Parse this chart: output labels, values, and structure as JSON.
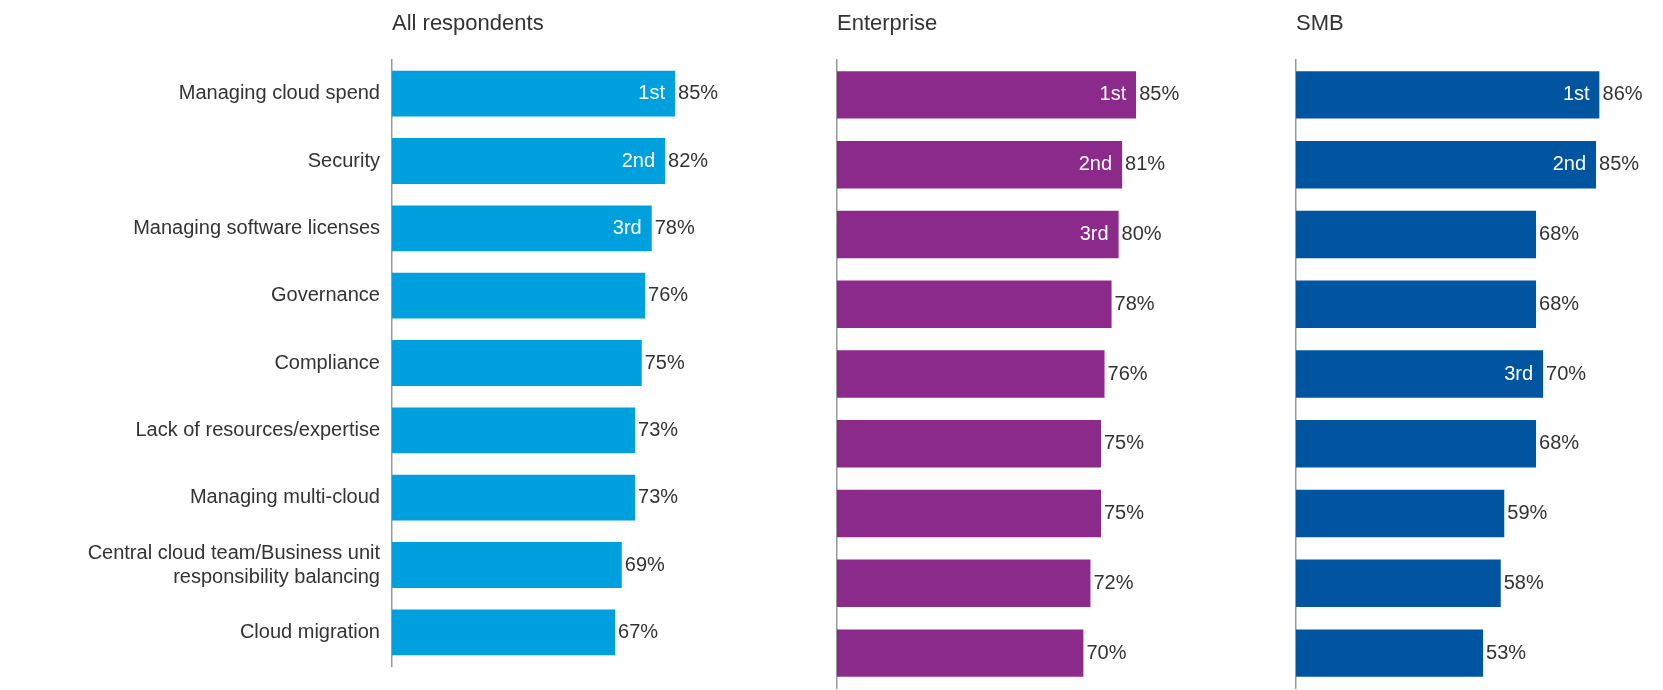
{
  "chart_data": [
    {
      "type": "bar",
      "orientation": "horizontal",
      "title": "All respondents",
      "tick_labels": "y",
      "categories": [
        "Managing cloud spend",
        "Security",
        "Managing software licenses",
        "Governance",
        "Compliance",
        "Lack of resources/expertise",
        "Managing multi-cloud",
        "Central cloud team/Business unit responsibility balancing",
        "Cloud migration"
      ],
      "series": [
        {
          "color": "#00a0df",
          "values": [
            85,
            82,
            78,
            76,
            75,
            73,
            73,
            69,
            67
          ],
          "value_labels": [
            "85%",
            "82%",
            "78%",
            "76%",
            "75%",
            "73%",
            "73%",
            "69%",
            "67%"
          ]
        }
      ],
      "annotations": [
        {
          "text": "1st",
          "x": 85,
          "y": "Managing cloud spend"
        },
        {
          "text": "2nd",
          "x": 82,
          "y": "Security"
        },
        {
          "text": "3rd",
          "x": 78,
          "y": "Managing software licenses"
        }
      ]
    },
    {
      "type": "bar",
      "orientation": "horizontal",
      "title": "Enterprise",
      "tick_labels": false,
      "categories": [
        "Managing cloud spend",
        "Security",
        "Managing software licenses",
        "Governance",
        "Compliance",
        "Lack of resources/expertise",
        "Managing multi-cloud",
        "Central cloud team/Business unit responsibility balancing",
        "Cloud migration"
      ],
      "series": [
        {
          "color": "#8c2a8c",
          "values": [
            85,
            81,
            80,
            78,
            76,
            75,
            75,
            72,
            70
          ],
          "value_labels": [
            "85%",
            "81%",
            "80%",
            "78%",
            "76%",
            "75%",
            "75%",
            "72%",
            "70%"
          ]
        }
      ],
      "annotations": [
        {
          "text": "1st",
          "x": 85,
          "y": "Managing cloud spend"
        },
        {
          "text": "2nd",
          "x": 81,
          "y": "Security"
        },
        {
          "text": "3rd",
          "x": 80,
          "y": "Managing software licenses"
        }
      ]
    },
    {
      "type": "bar",
      "orientation": "horizontal",
      "title": "SMB",
      "tick_labels": false,
      "categories": [
        "Managing cloud spend",
        "Security",
        "Managing software licenses",
        "Governance",
        "Compliance",
        "Lack of resources/expertise",
        "Managing multi-cloud",
        "Central cloud team/Business unit responsibility balancing",
        "Cloud migration"
      ],
      "series": [
        {
          "color": "#0054a0",
          "values": [
            86,
            85,
            68,
            68,
            70,
            68,
            59,
            58,
            53
          ],
          "value_labels": [
            "86%",
            "85%",
            "68%",
            "68%",
            "70%",
            "68%",
            "59%",
            "58%",
            "53%"
          ]
        }
      ],
      "annotations": [
        {
          "text": "1st",
          "x": 86,
          "y": "Managing cloud spend"
        },
        {
          "text": "2nd",
          "x": 85,
          "y": "Security"
        },
        {
          "text": "3rd",
          "x": 70,
          "y": "Compliance"
        }
      ]
    }
  ]
}
